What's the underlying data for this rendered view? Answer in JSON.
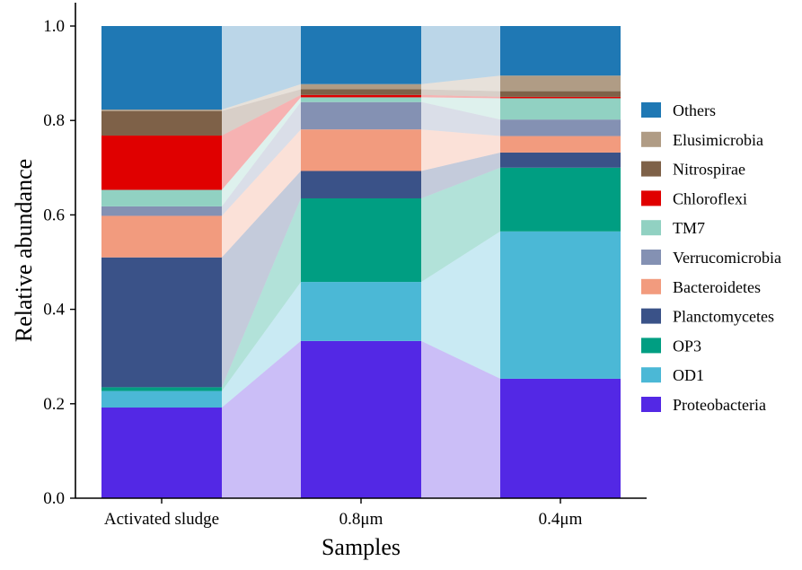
{
  "chart_data": {
    "type": "bar",
    "subtype": "stacked-100-percent-alluvial",
    "title": "",
    "xlabel": "Samples",
    "ylabel": "Relative abundance",
    "ylim": [
      0,
      1.0
    ],
    "yticks": [
      "0.0",
      "0.2",
      "0.4",
      "0.6",
      "0.8",
      "1.0"
    ],
    "categories": [
      "Activated sludge",
      "0.8μm",
      "0.4μm"
    ],
    "grid": false,
    "legend_position": "right",
    "series": [
      {
        "name": "Proteobacteria",
        "color": "#5328E5",
        "values": [
          0.192,
          0.333,
          0.253
        ]
      },
      {
        "name": "OD1",
        "color": "#4BB8D6",
        "values": [
          0.035,
          0.125,
          0.312
        ]
      },
      {
        "name": "OP3",
        "color": "#009E82",
        "values": [
          0.008,
          0.177,
          0.135
        ]
      },
      {
        "name": "Planctomycetes",
        "color": "#3A5288",
        "values": [
          0.275,
          0.058,
          0.032
        ]
      },
      {
        "name": "Bacteroidetes",
        "color": "#F29B7E",
        "values": [
          0.088,
          0.088,
          0.035
        ]
      },
      {
        "name": "Verrucomicrobia",
        "color": "#8491B3",
        "values": [
          0.02,
          0.058,
          0.035
        ]
      },
      {
        "name": "TM7",
        "color": "#91D1C2",
        "values": [
          0.035,
          0.01,
          0.045
        ]
      },
      {
        "name": "Chloroflexi",
        "color": "#E00000",
        "values": [
          0.115,
          0.005,
          0.003
        ]
      },
      {
        "name": "Nitrospirae",
        "color": "#7E6148",
        "values": [
          0.052,
          0.012,
          0.012
        ]
      },
      {
        "name": "Elusimicrobia",
        "color": "#B09C85",
        "values": [
          0.003,
          0.011,
          0.033
        ]
      },
      {
        "name": "Others",
        "color": "#1F78B4",
        "values": [
          0.177,
          0.123,
          0.105
        ]
      }
    ],
    "legend_order": [
      "Others",
      "Elusimicrobia",
      "Nitrospirae",
      "Chloroflexi",
      "TM7",
      "Verrucomicrobia",
      "Bacteroidetes",
      "Planctomycetes",
      "OP3",
      "OD1",
      "Proteobacteria"
    ]
  }
}
